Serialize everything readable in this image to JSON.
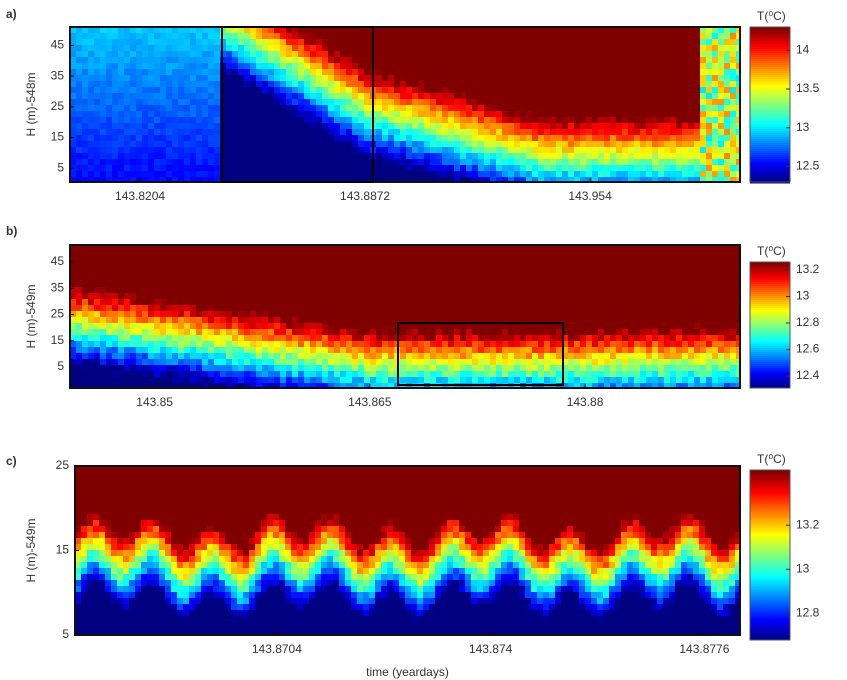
{
  "chart_data": [
    {
      "type": "heatmap",
      "panel_label": "a)",
      "ylabel": "H (m)-548m",
      "colorbar_title": "T(⁰C)",
      "xlim": [
        143.7996,
        143.9985
      ],
      "xticks": [
        143.8204,
        143.8872,
        143.954
      ],
      "ylim": [
        0.5,
        51
      ],
      "yticks": [
        5,
        15,
        25,
        35,
        45
      ],
      "clim": [
        12.3,
        14.3
      ],
      "cticks": [
        12.5,
        13,
        13.5,
        14
      ]
    },
    {
      "type": "heatmap",
      "panel_label": "b)",
      "ylabel": "H (m)-549m",
      "colorbar_title": "T(⁰C)",
      "xlim": [
        143.8441,
        143.8908
      ],
      "xticks": [
        143.85,
        143.865,
        143.88
      ],
      "ylim": [
        -3,
        51.5
      ],
      "yticks": [
        5,
        15,
        25,
        35,
        45
      ],
      "clim": [
        12.31,
        13.26
      ],
      "cticks": [
        12.4,
        12.6,
        12.8,
        13,
        13.2
      ]
    },
    {
      "type": "heatmap",
      "panel_label": "c)",
      "ylabel": "H (m)-549m",
      "xlabel": "time (yeardays)",
      "colorbar_title": "T(⁰C)",
      "xlim": [
        143.867,
        143.8782
      ],
      "xticks": [
        143.8704,
        143.874,
        143.8776
      ],
      "ylim": [
        5,
        25
      ],
      "yticks": [
        5,
        15,
        25
      ],
      "clim": [
        12.68,
        13.45
      ],
      "cticks": [
        12.8,
        13,
        13.2
      ]
    }
  ]
}
